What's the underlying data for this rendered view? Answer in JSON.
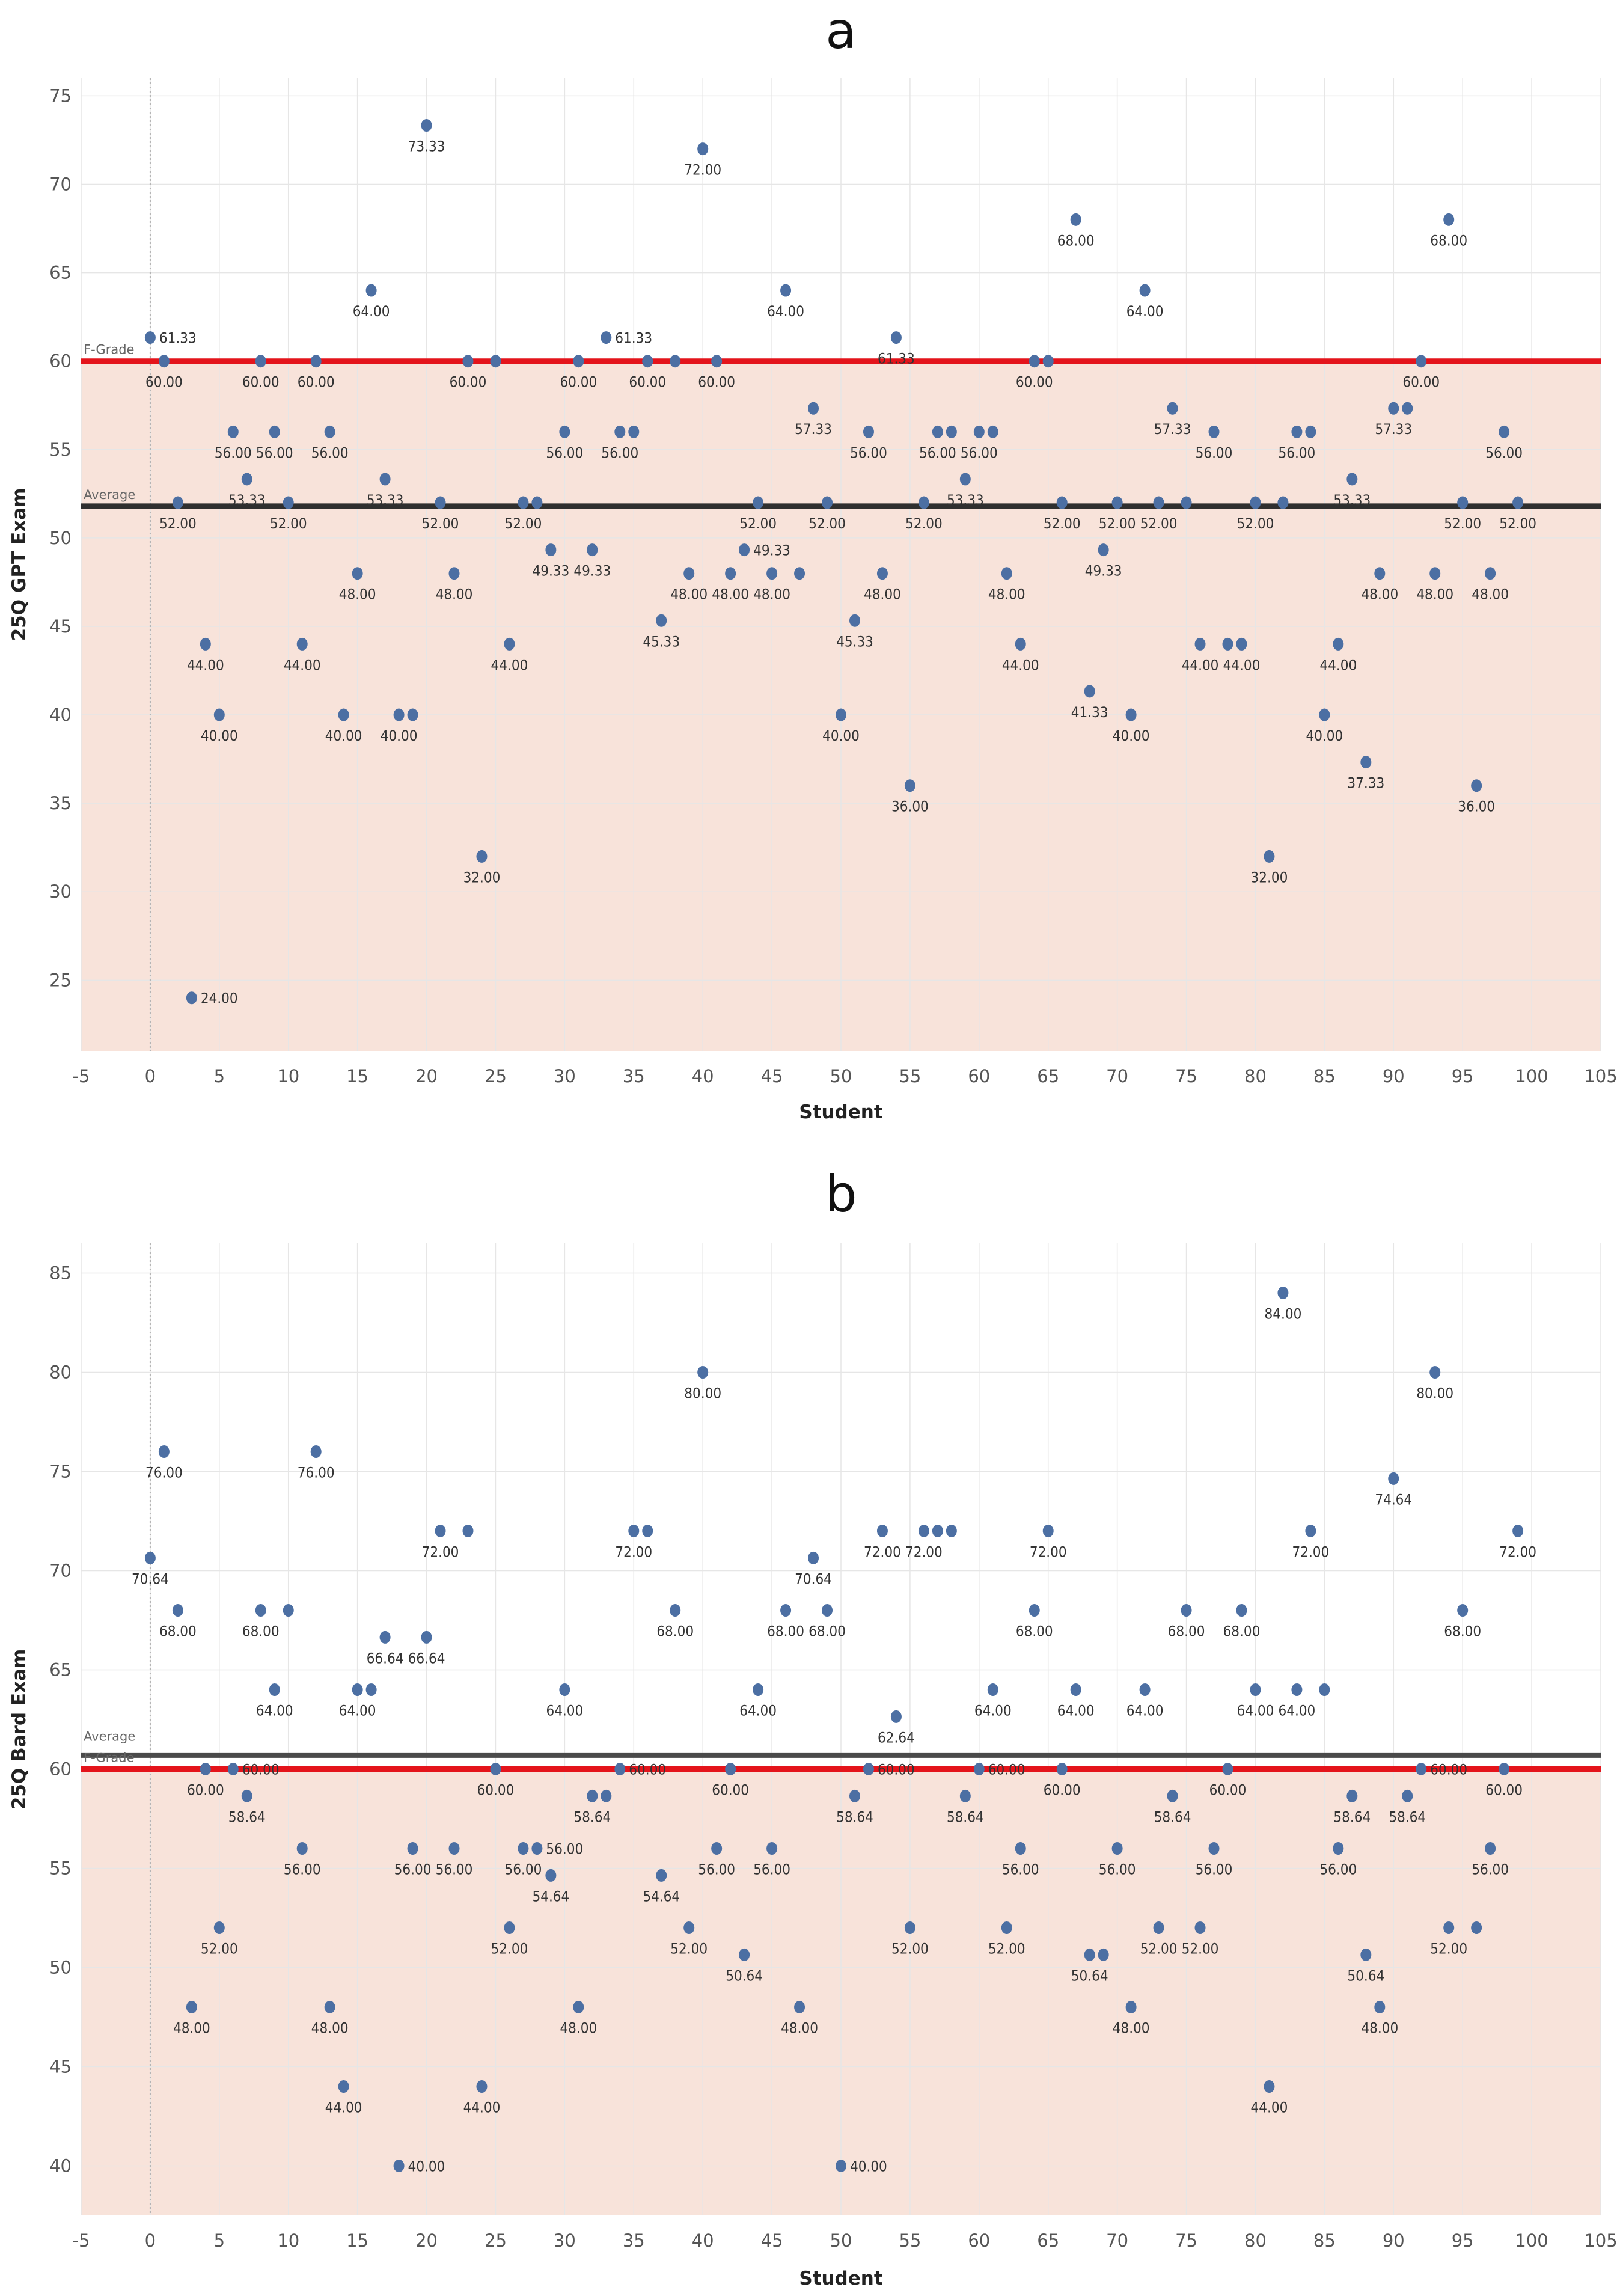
{
  "chart_data": [
    {
      "type": "scatter",
      "title": "a",
      "xlabel": "Student",
      "ylabel": "25Q GPT Exam",
      "xlim": [
        -5,
        105
      ],
      "ylim": [
        21,
        76
      ],
      "x_ticks": [
        -5,
        0,
        5,
        10,
        15,
        20,
        25,
        30,
        35,
        40,
        45,
        50,
        55,
        60,
        65,
        70,
        75,
        80,
        85,
        90,
        95,
        100,
        105
      ],
      "y_ticks": [
        25,
        30,
        35,
        40,
        45,
        50,
        55,
        60,
        65,
        70,
        75
      ],
      "reference_lines": [
        {
          "label": "F-Grade",
          "value": 60.0,
          "color": "#e4141b"
        },
        {
          "label": "Average",
          "value": 51.8,
          "color": "#2f2f2f"
        }
      ],
      "x": [
        0,
        1,
        2,
        3,
        4,
        5,
        6,
        7,
        8,
        9,
        10,
        11,
        12,
        13,
        14,
        15,
        16,
        17,
        18,
        19,
        20,
        21,
        22,
        23,
        24,
        25,
        26,
        27,
        28,
        29,
        30,
        31,
        32,
        33,
        34,
        35,
        36,
        37,
        38,
        39,
        40,
        41,
        42,
        43,
        44,
        45,
        46,
        47,
        48,
        49,
        50,
        51,
        52,
        53,
        54,
        55,
        56,
        57,
        58,
        59,
        60,
        61,
        62,
        63,
        64,
        65,
        66,
        67,
        68,
        69,
        70,
        71,
        72,
        73,
        74,
        75,
        76,
        77,
        78,
        79,
        80,
        81,
        82,
        83,
        84,
        85,
        86,
        87,
        88,
        89,
        90,
        91,
        92,
        93,
        94,
        95,
        96,
        97,
        98,
        99
      ],
      "y": [
        61.33,
        60.0,
        52.0,
        24.0,
        44.0,
        40.0,
        56.0,
        53.33,
        60.0,
        56.0,
        52.0,
        44.0,
        60.0,
        56.0,
        40.0,
        48.0,
        64.0,
        53.33,
        40.0,
        40.0,
        73.33,
        52.0,
        48.0,
        60.0,
        32.0,
        60.0,
        44.0,
        52.0,
        52.0,
        49.33,
        56.0,
        60.0,
        49.33,
        61.33,
        56.0,
        56.0,
        60.0,
        45.33,
        60.0,
        48.0,
        72.0,
        60.0,
        48.0,
        49.33,
        52.0,
        48.0,
        64.0,
        48.0,
        57.33,
        52.0,
        40.0,
        45.33,
        56.0,
        48.0,
        61.33,
        36.0,
        52.0,
        56.0,
        56.0,
        53.33,
        56.0,
        56.0,
        48.0,
        44.0,
        60.0,
        60.0,
        52.0,
        68.0,
        41.33,
        49.33,
        52.0,
        40.0,
        64.0,
        52.0,
        57.33,
        52.0,
        44.0,
        56.0,
        44.0,
        44.0,
        52.0,
        32.0,
        52.0,
        56.0,
        56.0,
        40.0,
        44.0,
        53.33,
        37.33,
        48.0,
        57.33,
        57.33,
        60.0,
        48.0,
        68.0,
        52.0,
        36.0,
        48.0,
        56.0,
        52.0
      ],
      "labels": [
        "61.33",
        "60.00",
        "52.00",
        "24.00",
        "44.00",
        "40.00",
        "56.00",
        "53.33",
        "60.00",
        "56.00",
        "52.00",
        "44.00",
        "60.00",
        "56.00",
        "40.00",
        "48.00",
        "64.00",
        "53.33",
        "40.00",
        "",
        "73.33",
        "52.00",
        "48.00",
        "60.00",
        "32.00",
        "",
        "44.00",
        "52.00",
        "",
        "49.33",
        "56.00",
        "60.00",
        "49.33",
        "61.33",
        "56.00",
        "",
        "60.00",
        "45.33",
        "",
        "48.00",
        "72.00",
        "60.00",
        "48.00",
        "49.33",
        "52.00",
        "48.00",
        "64.00",
        "",
        "57.33",
        "52.00",
        "40.00",
        "45.33",
        "56.00",
        "48.00",
        "61.33",
        "36.00",
        "52.00",
        "56.00",
        "",
        "53.33",
        "56.00",
        "",
        "48.00",
        "44.00",
        "60.00",
        "",
        "52.00",
        "68.00",
        "41.33",
        "49.33",
        "52.00",
        "40.00",
        "64.00",
        "52.00",
        "57.33",
        "",
        "44.00",
        "56.00",
        "",
        "44.00",
        "52.00",
        "32.00",
        "",
        "56.00",
        "",
        "40.00",
        "44.00",
        "53.33",
        "37.33",
        "48.00",
        "57.33",
        "",
        "60.00",
        "48.00",
        "68.00",
        "52.00",
        "36.00",
        "48.00",
        "56.00",
        "52.00"
      ],
      "label_side": [
        "R",
        "B",
        "B",
        "R",
        "B",
        "B",
        "B",
        "B",
        "B",
        "B",
        "B",
        "B",
        "B",
        "B",
        "B",
        "B",
        "B",
        "B",
        "B",
        "B",
        "B",
        "B",
        "B",
        "B",
        "B",
        "B",
        "B",
        "B",
        "B",
        "B",
        "B",
        "B",
        "B",
        "R",
        "B",
        "B",
        "B",
        "B",
        "B",
        "B",
        "B",
        "B",
        "B",
        "R",
        "B",
        "B",
        "B",
        "B",
        "B",
        "B",
        "B",
        "B",
        "B",
        "B",
        "B",
        "B",
        "B",
        "B",
        "B",
        "B",
        "B",
        "B",
        "B",
        "B",
        "B",
        "B",
        "B",
        "B",
        "B",
        "B",
        "B",
        "B",
        "B",
        "B",
        "B",
        "B",
        "B",
        "B",
        "B",
        "B",
        "B",
        "B",
        "B",
        "B",
        "B",
        "B",
        "B",
        "B",
        "B",
        "B",
        "B",
        "B",
        "B",
        "B",
        "B",
        "B",
        "B",
        "B",
        "B",
        "B"
      ]
    },
    {
      "type": "scatter",
      "title": "b",
      "xlabel": "Student",
      "ylabel": "25Q Bard Exam",
      "xlim": [
        -5,
        105
      ],
      "ylim": [
        37.5,
        86.5
      ],
      "x_ticks": [
        -5,
        0,
        5,
        10,
        15,
        20,
        25,
        30,
        35,
        40,
        45,
        50,
        55,
        60,
        65,
        70,
        75,
        80,
        85,
        90,
        95,
        100,
        105
      ],
      "y_ticks": [
        40,
        45,
        50,
        55,
        60,
        65,
        70,
        75,
        80,
        85
      ],
      "reference_lines": [
        {
          "label": "Average",
          "value": 60.7,
          "color": "#4a4a4a"
        },
        {
          "label": "F-Grade",
          "value": 60.0,
          "color": "#e4141b"
        }
      ],
      "x": [
        0,
        1,
        2,
        3,
        4,
        5,
        6,
        7,
        8,
        9,
        10,
        11,
        12,
        13,
        14,
        15,
        16,
        17,
        18,
        19,
        20,
        21,
        22,
        23,
        24,
        25,
        26,
        27,
        28,
        29,
        30,
        31,
        32,
        33,
        34,
        35,
        36,
        37,
        38,
        39,
        40,
        41,
        42,
        43,
        44,
        45,
        46,
        47,
        48,
        49,
        50,
        51,
        52,
        53,
        54,
        55,
        56,
        57,
        58,
        59,
        60,
        61,
        62,
        63,
        64,
        65,
        66,
        67,
        68,
        69,
        70,
        71,
        72,
        73,
        74,
        75,
        76,
        77,
        78,
        79,
        80,
        81,
        82,
        83,
        84,
        85,
        86,
        87,
        88,
        89,
        90,
        91,
        92,
        93,
        94,
        95,
        96,
        97,
        98,
        99
      ],
      "y": [
        70.64,
        76.0,
        68.0,
        48.0,
        60.0,
        52.0,
        60.0,
        58.64,
        68.0,
        64.0,
        68.0,
        56.0,
        76.0,
        48.0,
        44.0,
        64.0,
        64.0,
        66.64,
        40.0,
        56.0,
        66.64,
        72.0,
        56.0,
        72.0,
        44.0,
        60.0,
        52.0,
        56.0,
        56.0,
        54.64,
        64.0,
        48.0,
        58.64,
        58.64,
        60.0,
        72.0,
        72.0,
        54.64,
        68.0,
        52.0,
        80.0,
        56.0,
        60.0,
        50.64,
        64.0,
        56.0,
        68.0,
        48.0,
        70.64,
        68.0,
        40.0,
        58.64,
        60.0,
        72.0,
        62.64,
        52.0,
        72.0,
        72.0,
        72.0,
        58.64,
        60.0,
        64.0,
        52.0,
        56.0,
        68.0,
        72.0,
        60.0,
        64.0,
        50.64,
        50.64,
        56.0,
        48.0,
        64.0,
        52.0,
        58.64,
        68.0,
        52.0,
        56.0,
        60.0,
        68.0,
        64.0,
        44.0,
        84.0,
        64.0,
        72.0,
        64.0,
        56.0,
        58.64,
        50.64,
        48.0,
        74.64,
        58.64,
        60.0,
        80.0,
        52.0,
        68.0,
        52.0,
        56.0,
        60.0,
        72.0
      ],
      "labels": [
        "70.64",
        "76.00",
        "68.00",
        "48.00",
        "60.00",
        "52.00",
        "60.00",
        "58.64",
        "68.00",
        "64.00",
        "",
        "56.00",
        "76.00",
        "48.00",
        "44.00",
        "64.00",
        "",
        "66.64",
        "40.00",
        "56.00",
        "66.64",
        "72.00",
        "56.00",
        "",
        "44.00",
        "60.00",
        "52.00",
        "56.00",
        "56.00",
        "54.64",
        "64.00",
        "48.00",
        "58.64",
        "",
        "60.00",
        "72.00",
        "",
        "54.64",
        "68.00",
        "52.00",
        "80.00",
        "56.00",
        "60.00",
        "50.64",
        "64.00",
        "56.00",
        "68.00",
        "48.00",
        "70.64",
        "68.00",
        "40.00",
        "58.64",
        "60.00",
        "72.00",
        "62.64",
        "52.00",
        "72.00",
        "",
        "",
        "58.64",
        "60.00",
        "64.00",
        "52.00",
        "56.00",
        "68.00",
        "72.00",
        "60.00",
        "64.00",
        "50.64",
        "",
        "56.00",
        "48.00",
        "64.00",
        "52.00",
        "58.64",
        "68.00",
        "52.00",
        "56.00",
        "60.00",
        "68.00",
        "64.00",
        "44.00",
        "84.00",
        "64.00",
        "72.00",
        "",
        "56.00",
        "58.64",
        "50.64",
        "48.00",
        "74.64",
        "58.64",
        "60.00",
        "80.00",
        "52.00",
        "68.00",
        "",
        "56.00",
        "60.00",
        "72.00"
      ],
      "label_side": [
        "B",
        "B",
        "B",
        "B",
        "B",
        "B",
        "R",
        "B",
        "B",
        "B",
        "B",
        "B",
        "B",
        "B",
        "B",
        "B",
        "B",
        "B",
        "R",
        "B",
        "B",
        "B",
        "B",
        "B",
        "B",
        "B",
        "B",
        "B",
        "R",
        "B",
        "B",
        "B",
        "B",
        "B",
        "R",
        "B",
        "B",
        "B",
        "B",
        "B",
        "B",
        "B",
        "B",
        "B",
        "B",
        "B",
        "B",
        "B",
        "B",
        "B",
        "R",
        "B",
        "R",
        "B",
        "B",
        "B",
        "B",
        "B",
        "B",
        "B",
        "R",
        "B",
        "B",
        "B",
        "B",
        "B",
        "B",
        "B",
        "B",
        "B",
        "B",
        "B",
        "B",
        "B",
        "B",
        "B",
        "B",
        "B",
        "B",
        "B",
        "B",
        "B",
        "B",
        "B",
        "B",
        "B",
        "B",
        "B",
        "B",
        "B",
        "B",
        "B",
        "R",
        "B",
        "B",
        "B",
        "B",
        "B",
        "B",
        "B"
      ]
    }
  ]
}
